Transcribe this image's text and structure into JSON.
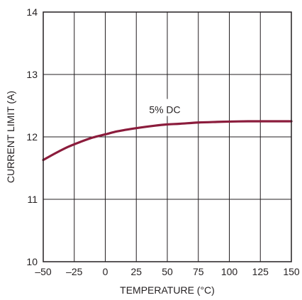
{
  "chart_data": {
    "type": "line",
    "title": "",
    "xlabel": "TEMPERATURE (°C)",
    "ylabel": "CURRENT LIMIT (A)",
    "xlim": [
      -50,
      150
    ],
    "ylim": [
      10,
      14
    ],
    "xticks": [
      -50,
      -25,
      0,
      25,
      50,
      75,
      100,
      125,
      150
    ],
    "xtick_labels": [
      "–50",
      "–25",
      "0",
      "25",
      "50",
      "75",
      "100",
      "125",
      "150"
    ],
    "yticks": [
      10,
      11,
      12,
      13,
      14
    ],
    "ytick_labels": [
      "10",
      "11",
      "12",
      "13",
      "14"
    ],
    "grid": true,
    "series": [
      {
        "name": "5% DC",
        "color": "#8b1c3c",
        "x": [
          -50,
          -40,
          -30,
          -20,
          -10,
          0,
          10,
          25,
          40,
          50,
          60,
          75,
          90,
          100,
          115,
          125,
          140,
          150
        ],
        "y": [
          11.63,
          11.74,
          11.84,
          11.92,
          11.99,
          12.04,
          12.09,
          12.14,
          12.18,
          12.2,
          12.21,
          12.23,
          12.24,
          12.245,
          12.25,
          12.25,
          12.25,
          12.25
        ]
      }
    ],
    "annotations": [
      {
        "text": "5% DC",
        "x": 48,
        "y": 12.38
      }
    ]
  }
}
